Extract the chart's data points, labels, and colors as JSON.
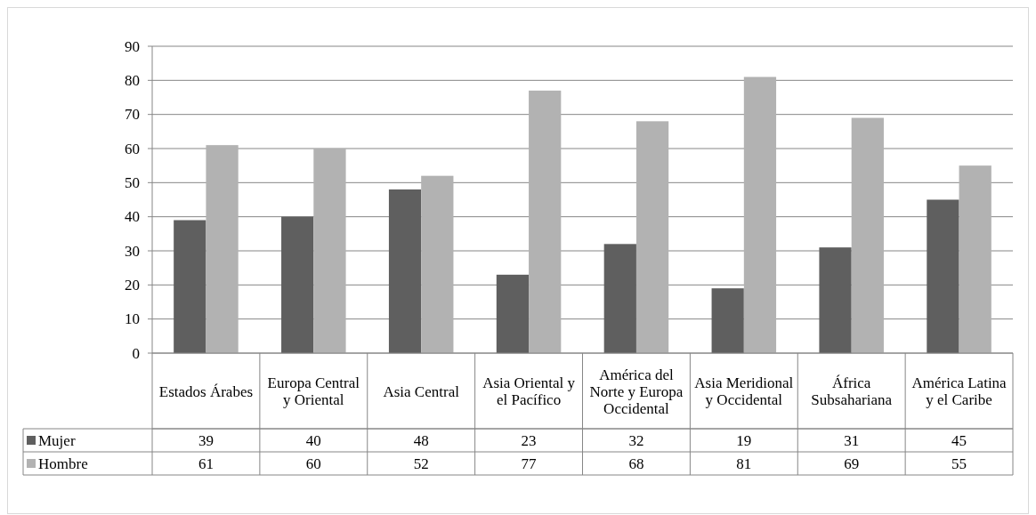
{
  "chart_data": {
    "type": "bar",
    "categories": [
      "Estados Árabes",
      "Europa Central y Oriental",
      "Asia Central",
      "Asia Oriental y el Pacífico",
      "América del Norte y Europa Occidental",
      "Asia Meridional y Occidental",
      "África Subsahariana",
      "América Latina y el Caribe"
    ],
    "series": [
      {
        "name": "Mujer",
        "color": "#5f5f5f",
        "values": [
          39,
          40,
          48,
          23,
          32,
          19,
          31,
          45
        ]
      },
      {
        "name": "Hombre",
        "color": "#b2b2b2",
        "values": [
          61,
          60,
          52,
          77,
          68,
          81,
          69,
          55
        ]
      }
    ],
    "ylim": [
      0,
      90
    ],
    "yticks": [
      0,
      10,
      20,
      30,
      40,
      50,
      60,
      70,
      80,
      90
    ],
    "grid": "y",
    "legend": "bottom left",
    "data_labels": true
  }
}
